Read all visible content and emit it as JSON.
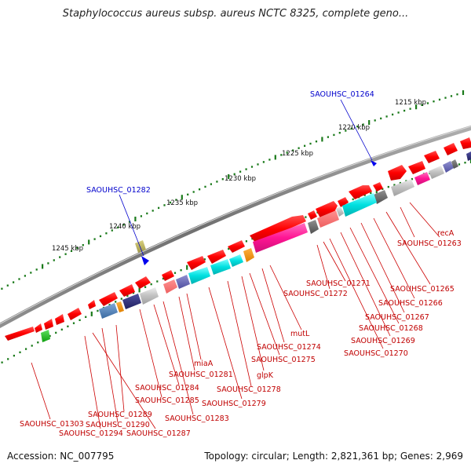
{
  "title": "Staphylococcus aureus subsp. aureus NCTC 8325, complete geno...",
  "footer": {
    "accession": "Accession: NC_007795",
    "summary": "Topology: circular; Length: 2,821,361 bp; Genes: 2,969"
  },
  "kbp_labels": [
    "1215 kbp",
    "1220 kbp",
    "1225 kbp",
    "1230 kbp",
    "1235 kbp",
    "1240 kbp",
    "1245 kbp"
  ],
  "highlight_labels": [
    "SAOUHSC_01264",
    "SAOUHSC_01282"
  ],
  "gene_labels": [
    "recA",
    "SAOUHSC_01263",
    "SAOUHSC_01265",
    "SAOUHSC_01266",
    "SAOUHSC_01267",
    "SAOUHSC_01268",
    "SAOUHSC_01269",
    "SAOUHSC_01270",
    "SAOUHSC_01271",
    "SAOUHSC_01272",
    "mutL",
    "SAOUHSC_01274",
    "SAOUHSC_01275",
    "glpK",
    "SAOUHSC_01278",
    "SAOUHSC_01279",
    "miaA",
    "SAOUHSC_01281",
    "SAOUHSC_01284",
    "SAOUHSC_01285",
    "SAOUHSC_01283",
    "SAOUHSC_01289",
    "SAOUHSC_01290",
    "SAOUHSC_01287",
    "SAOUHSC_01294",
    "SAOUHSC_01303"
  ],
  "colors": {
    "gene": "#ff0000",
    "backbone": "#808080",
    "highlight": "#0000cc",
    "kbp_tick": "#1a7a1a",
    "label_line": "#cc0000"
  }
}
